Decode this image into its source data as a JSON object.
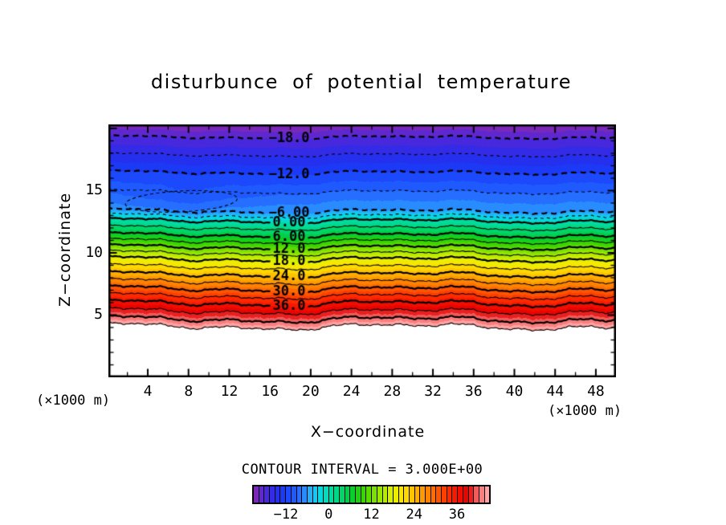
{
  "title": "disturbunce of potential temperature",
  "axes": {
    "x_label": "X−coordinate",
    "z_label": "Z−coordinate",
    "x_unit": "(×1000 m)",
    "z_unit": "(×1000 m)"
  },
  "legend": {
    "contour_interval_text": "CONTOUR INTERVAL = 3.000E+00",
    "colorbar_labels": [
      "−12",
      "0",
      "12",
      "24",
      "36"
    ]
  },
  "chart_data": {
    "type": "heatmap",
    "subtype": "filled_contour_section",
    "title": "disturbunce of potential temperature",
    "xlabel": "X−coordinate",
    "ylabel": "Z−coordinate",
    "x_range": [
      0,
      50
    ],
    "z_range": [
      0,
      20.32
    ],
    "x_major_ticks": [
      4,
      8,
      12,
      16,
      20,
      24,
      28,
      32,
      36,
      40,
      44,
      48
    ],
    "x_minor_step": 2,
    "z_major_ticks": [
      5,
      10,
      15
    ],
    "z_minor_step": 1,
    "grid": false,
    "contour_interval": 3.0,
    "contour_levels": [
      -21,
      -18,
      -15,
      -12,
      -9,
      -6,
      -3,
      0,
      3,
      6,
      9,
      12,
      15,
      18,
      21,
      24,
      27,
      30,
      33,
      36,
      39,
      42,
      45
    ],
    "labeled_levels": [
      {
        "level": -18,
        "text": "−18.0"
      },
      {
        "level": -12,
        "text": "−12.0"
      },
      {
        "level": -6,
        "text": "−6.00"
      },
      {
        "level": 0,
        "text": "0.00"
      },
      {
        "level": 6,
        "text": "6.00"
      },
      {
        "level": 12,
        "text": "12.0"
      },
      {
        "level": 18,
        "text": "18.0"
      },
      {
        "level": 24,
        "text": "24.0"
      },
      {
        "level": 30,
        "text": "30.0"
      },
      {
        "level": 36,
        "text": "36.0"
      }
    ],
    "fill_min": -21,
    "fill_step": 1.5,
    "fill_count": 44,
    "colorbar_values": [
      -12,
      0,
      12,
      24,
      36
    ],
    "palette_anchors": [
      [
        -21,
        "#8c28aa"
      ],
      [
        -19.5,
        "#6a28c8"
      ],
      [
        -16.5,
        "#3c28e2"
      ],
      [
        -13.5,
        "#1c32f2"
      ],
      [
        -10.5,
        "#1c50ff"
      ],
      [
        -7.5,
        "#2878ff"
      ],
      [
        -6,
        "#28a0ff"
      ],
      [
        -4.5,
        "#1cc0f8"
      ],
      [
        -3,
        "#0cd4ec"
      ],
      [
        -1.5,
        "#00dcd0"
      ],
      [
        0,
        "#00dcae"
      ],
      [
        3,
        "#00d878"
      ],
      [
        6,
        "#00cc3a"
      ],
      [
        9,
        "#28d200"
      ],
      [
        12,
        "#6ade00"
      ],
      [
        15,
        "#aae800"
      ],
      [
        18,
        "#e6f200"
      ],
      [
        21,
        "#ffe200"
      ],
      [
        24,
        "#ffb800"
      ],
      [
        27,
        "#ff8e00"
      ],
      [
        30,
        "#ff6000"
      ],
      [
        33,
        "#ff3200"
      ],
      [
        36,
        "#f51200"
      ],
      [
        39,
        "#e40000"
      ],
      [
        41,
        "#ee5555"
      ],
      [
        43.5,
        "#ff9090"
      ],
      [
        45,
        "#ffb8b8"
      ]
    ],
    "profile_z_v": [
      [
        20.32,
        -20.7
      ],
      [
        19.29,
        -18
      ],
      [
        16.45,
        -12
      ],
      [
        13.35,
        -6
      ],
      [
        12.58,
        0
      ],
      [
        11.42,
        6
      ],
      [
        10.45,
        12
      ],
      [
        9.48,
        18
      ],
      [
        8.26,
        24
      ],
      [
        7.1,
        30
      ],
      [
        5.94,
        36
      ],
      [
        4.65,
        42
      ],
      [
        4.07,
        45
      ],
      [
        0,
        66
      ]
    ],
    "undulation": {
      "components": [
        [
          2.3,
          0.018,
          1.2
        ],
        [
          1.3,
          0.045,
          0.4
        ],
        [
          0.9,
          0.085,
          2.1
        ],
        [
          0.55,
          0.21,
          0.7
        ],
        [
          0.35,
          0.47,
          1.9
        ],
        [
          0.3,
          0.9,
          0.5
        ]
      ],
      "depth_gain": [
        0.6,
        0.85
      ]
    },
    "cold_pocket": {
      "x": 7.3,
      "z": 14.2,
      "sx": 4.9,
      "sz": 0.97,
      "amp": -1.6,
      "loop_rx": 5.5,
      "loop_rz": 0.84
    }
  }
}
